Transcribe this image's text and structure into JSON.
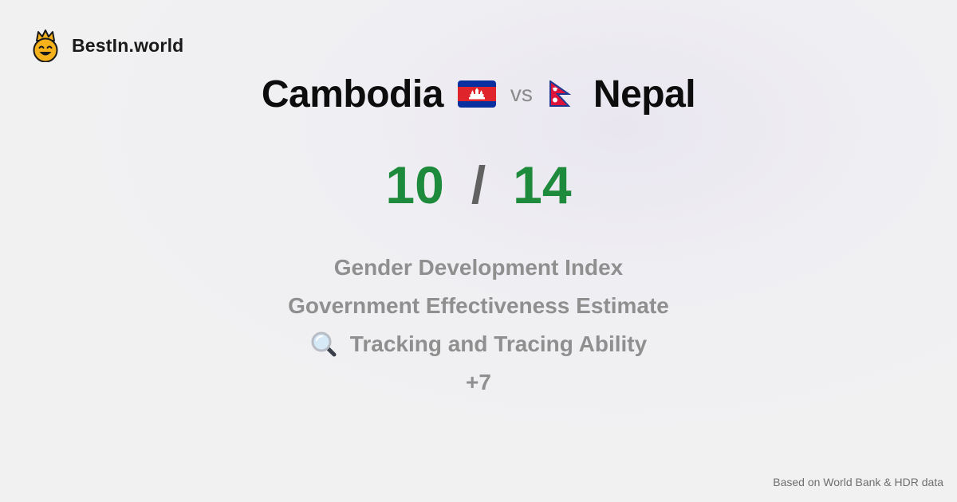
{
  "brand": {
    "name": "BestIn.world",
    "logo_icon": "crowned-smiley-icon"
  },
  "comparison": {
    "country_a": "Cambodia",
    "flag_a_icon": "cambodia-flag-icon",
    "vs_label": "vs",
    "country_b": "Nepal",
    "flag_b_icon": "nepal-flag-icon"
  },
  "score": {
    "a": "10",
    "separator": "/",
    "b": "14",
    "accent_color": "#1e8a3c"
  },
  "metrics": {
    "items": [
      "Gender Development Index",
      "Government Effectiveness Estimate",
      "Tracking and Tracing Ability"
    ],
    "third_item_icon": "magnifying-glass-icon",
    "more_label": "+7"
  },
  "footer": {
    "source": "Based on World Bank & HDR data"
  }
}
